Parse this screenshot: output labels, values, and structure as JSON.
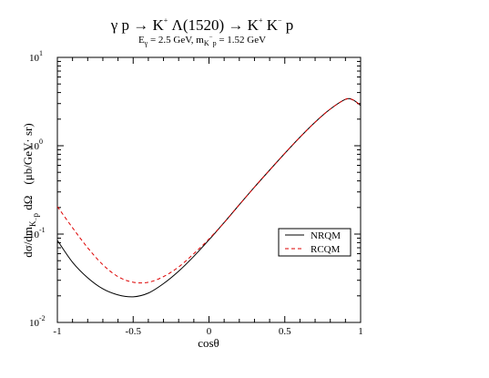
{
  "chart_data": {
    "type": "line",
    "title": "γ p → K⁺ Λ(1520) → K⁺ K⁻ p",
    "subtitle": "E_γ = 2.5 GeV,  m_K⁻p = 1.52 GeV",
    "title_parts": {
      "main_a": "γ p → K",
      "main_sup1": "+",
      "main_b": " Λ(1520) → K",
      "main_sup2": "+",
      "main_c": " K",
      "main_sup3": "−",
      "main_d": " p",
      "sub_e": "E",
      "sub_gamma": "γ",
      "sub_energy": " = 2.5 GeV,  m",
      "sub_k": "K",
      "sub_minus": "−",
      "sub_p": "p",
      "sub_mass": " = 1.52 GeV"
    },
    "xlabel": "cosθ",
    "ylabel": "dσ/dm_K⁻p dΩ   (μb/GeV·sr)",
    "ylabel_parts": {
      "a": "dσ/dm",
      "k": "K",
      "minus": "−",
      "p": "p",
      "b": " dΩ",
      "units": "(μb/GeV· sr)"
    },
    "xlim": [
      -1,
      1
    ],
    "ylim": [
      0.01,
      10
    ],
    "yscale": "log",
    "grid": false,
    "legend_position": "right-middle",
    "x_ticks": [
      {
        "value": -1,
        "label": "-1"
      },
      {
        "value": -0.5,
        "label": "-0.5"
      },
      {
        "value": 0,
        "label": "0"
      },
      {
        "value": 0.5,
        "label": "0.5"
      },
      {
        "value": 1,
        "label": "1"
      }
    ],
    "y_ticks": [
      {
        "value": 0.01,
        "base": "10",
        "exp": "-2"
      },
      {
        "value": 0.1,
        "base": "10",
        "exp": "-1"
      },
      {
        "value": 1,
        "base": "10",
        "exp": "0"
      },
      {
        "value": 10,
        "base": "10",
        "exp": "1"
      }
    ],
    "x": [
      -1.0,
      -0.9,
      -0.8,
      -0.7,
      -0.6,
      -0.5,
      -0.4,
      -0.3,
      -0.2,
      -0.1,
      0.0,
      0.1,
      0.2,
      0.3,
      0.4,
      0.5,
      0.6,
      0.7,
      0.8,
      0.9,
      0.95,
      1.0
    ],
    "series": [
      {
        "name": "NRQM",
        "color": "#000000",
        "dash": "solid",
        "values": [
          0.085,
          0.048,
          0.032,
          0.024,
          0.0205,
          0.0195,
          0.0215,
          0.0275,
          0.038,
          0.056,
          0.086,
          0.135,
          0.215,
          0.34,
          0.53,
          0.82,
          1.25,
          1.85,
          2.6,
          3.35,
          3.3,
          2.85
        ]
      },
      {
        "name": "RCQM",
        "color": "#dd0000",
        "dash": "dashed",
        "values": [
          0.205,
          0.118,
          0.07,
          0.045,
          0.033,
          0.0285,
          0.0285,
          0.033,
          0.0425,
          0.06,
          0.088,
          0.135,
          0.215,
          0.34,
          0.53,
          0.82,
          1.25,
          1.85,
          2.6,
          3.35,
          3.3,
          2.85
        ]
      }
    ]
  }
}
